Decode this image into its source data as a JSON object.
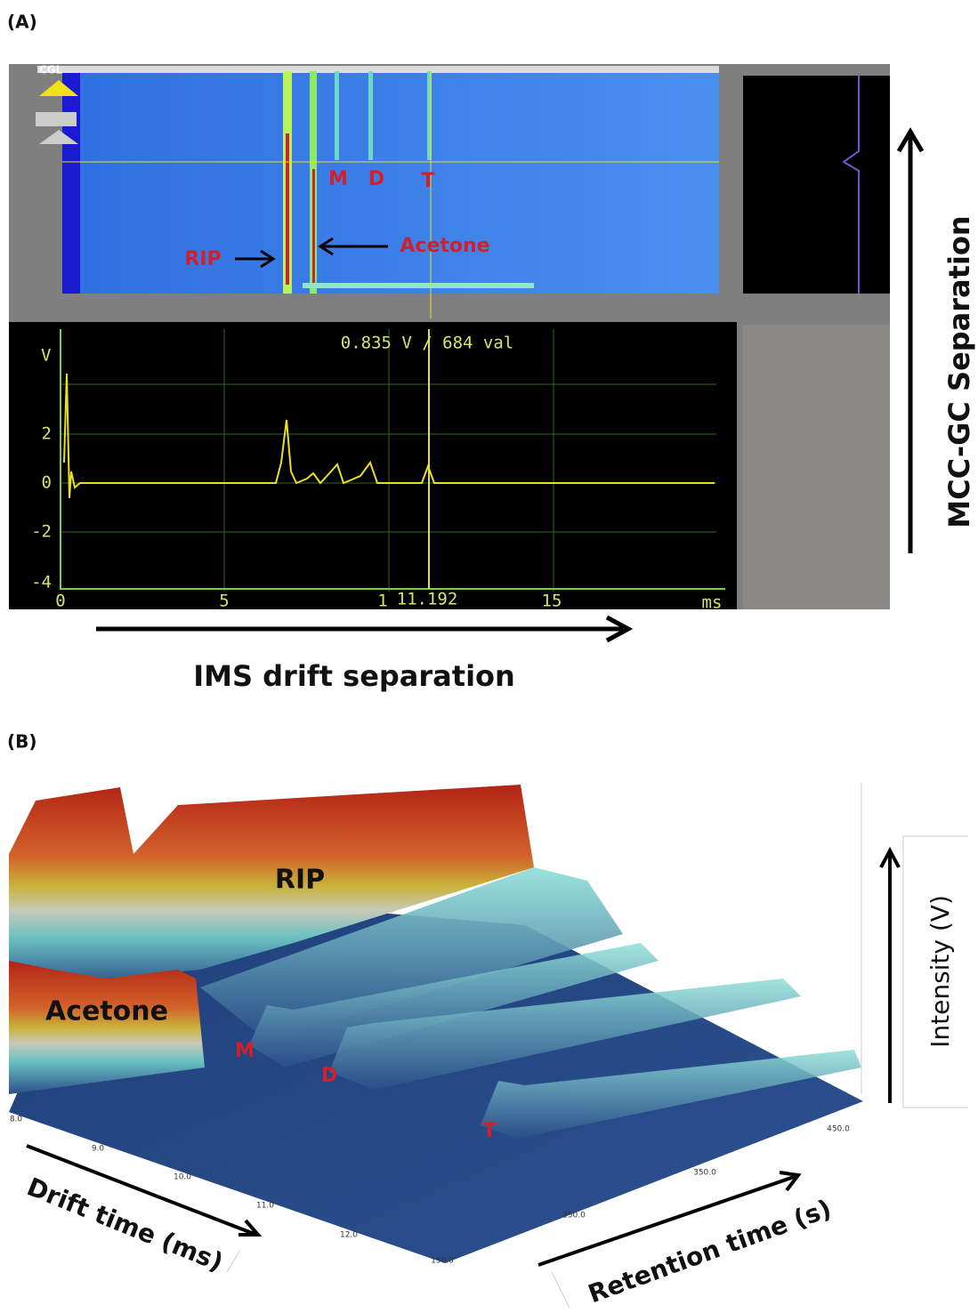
{
  "panel_a": {
    "label": "(A)",
    "logo": "CGL",
    "heatmap": {
      "m": "M",
      "d": "D",
      "t": "T",
      "rip": "RIP",
      "acetone": "Acetone"
    },
    "readout": "0.835 V / 684 val",
    "y_unit": "V",
    "y_ticks": [
      "2",
      "0",
      "-2",
      "-4"
    ],
    "x_ticks": [
      "0",
      "5",
      "1",
      "15"
    ],
    "cursor": "11.192",
    "x_unit": "ms",
    "x_caption": "IMS drift separation",
    "y_caption": "MCC-GC Separation"
  },
  "panel_b": {
    "label": "(B)",
    "rip": "RIP",
    "acetone": "Acetone",
    "m": "M",
    "d": "D",
    "t": "T",
    "drift_ticks": [
      "8.0",
      "9.0",
      "10.0",
      "11.0",
      "12.0"
    ],
    "retention_ticks": [
      "150.0",
      "250.0",
      "350.0",
      "450.0"
    ],
    "drift_label": "Drift time (ms)",
    "retention_label": "Retention time (s)",
    "intensity_label": "Intensity (V)"
  }
}
